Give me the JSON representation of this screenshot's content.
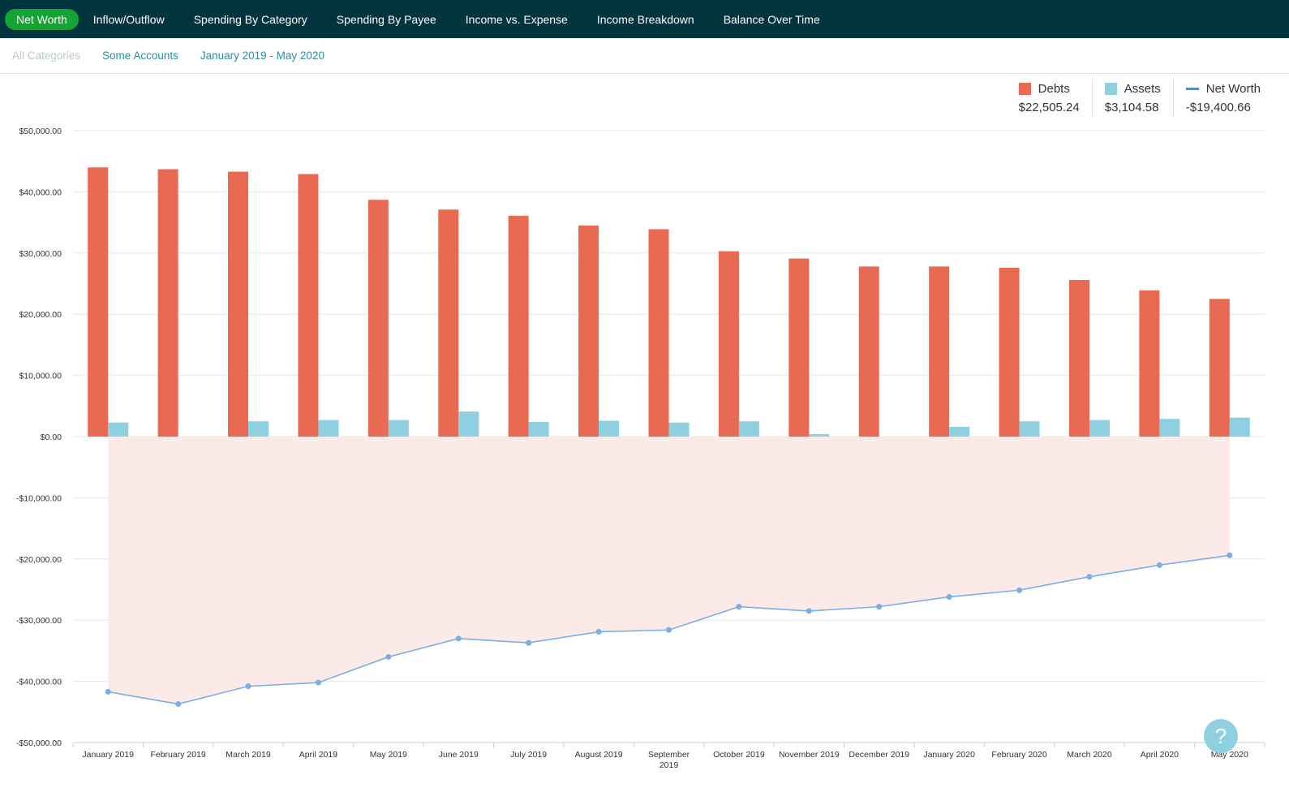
{
  "nav": {
    "tabs": [
      {
        "label": "Net Worth",
        "active": true
      },
      {
        "label": "Inflow/Outflow",
        "active": false
      },
      {
        "label": "Spending By Category",
        "active": false
      },
      {
        "label": "Spending By Payee",
        "active": false
      },
      {
        "label": "Income vs. Expense",
        "active": false
      },
      {
        "label": "Income Breakdown",
        "active": false
      },
      {
        "label": "Balance Over Time",
        "active": false
      }
    ]
  },
  "filters": {
    "categories": "All Categories",
    "accounts": "Some Accounts",
    "date_range": "January 2019 - May 2020"
  },
  "legend": {
    "debts": {
      "label": "Debts",
      "value": "$22,505.24",
      "color": "#e86a53"
    },
    "assets": {
      "label": "Assets",
      "value": "$3,104.58",
      "color": "#8fd0e0"
    },
    "net_worth": {
      "label": "Net Worth",
      "value": "-$19,400.66",
      "color": "#5b8db0"
    }
  },
  "help": {
    "label": "?"
  },
  "chart_data": {
    "type": "bar",
    "categories": [
      "January 2019",
      "February 2019",
      "March 2019",
      "April 2019",
      "May 2019",
      "June 2019",
      "July 2019",
      "August 2019",
      "September 2019",
      "October 2019",
      "November 2019",
      "December 2019",
      "January 2020",
      "February 2020",
      "March 2020",
      "April 2020",
      "May 2020"
    ],
    "series": [
      {
        "name": "Debts",
        "kind": "bar",
        "color": "#e86a53",
        "values": [
          44000,
          43700,
          43300,
          42900,
          38700,
          37100,
          36100,
          34500,
          33900,
          30300,
          29100,
          27800,
          27800,
          27600,
          25600,
          23900,
          22505.24
        ]
      },
      {
        "name": "Assets",
        "kind": "bar",
        "color": "#8fd0e0",
        "values": [
          2300,
          0,
          2500,
          2700,
          2700,
          4100,
          2400,
          2600,
          2300,
          2500,
          400,
          0,
          1600,
          2500,
          2700,
          2900,
          3104.58
        ]
      },
      {
        "name": "Net Worth",
        "kind": "line",
        "color": "#7aaee6",
        "values": [
          -41700,
          -43700,
          -40800,
          -40200,
          -36000,
          -33000,
          -33700,
          -31900,
          -31600,
          -27800,
          -28500,
          -27800,
          -26200,
          -25100,
          -22900,
          -21000,
          -19400.66
        ]
      }
    ],
    "y_ticks": [
      "$50,000.00",
      "$40,000.00",
      "$30,000.00",
      "$20,000.00",
      "$10,000.00",
      "$0.00",
      "-$10,000.00",
      "-$20,000.00",
      "-$30,000.00",
      "-$40,000.00",
      "-$50,000.00"
    ],
    "ylim": [
      -50000,
      50000
    ],
    "grid": true,
    "legend_position": "top-right",
    "negative_fill_color": "#fbeae8"
  }
}
